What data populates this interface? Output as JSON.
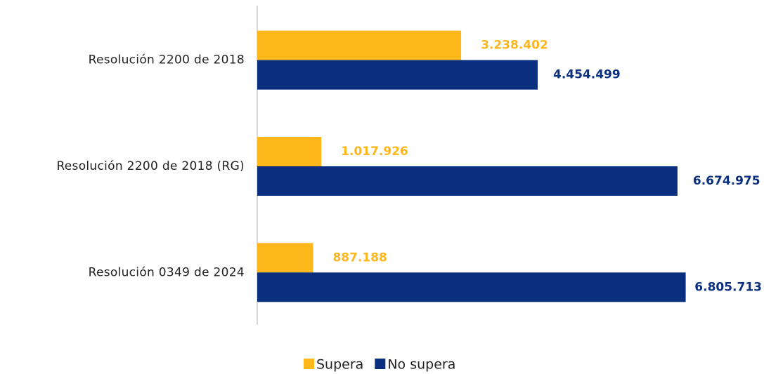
{
  "chart_data": {
    "type": "hbar",
    "categories": [
      "Resolución 2200 de 2018",
      "Resolución 2200 de 2018 (RG)",
      "Resolución 0349 de 2024"
    ],
    "series": [
      {
        "name": "Supera",
        "color": "#fdb71a",
        "values": [
          3238402,
          1017926,
          887188
        ],
        "value_labels": [
          "3.238.402",
          "1.017.926",
          "887.188"
        ]
      },
      {
        "name": "No supera",
        "color": "#0a2f7f",
        "values": [
          4454499,
          6674975,
          6805713
        ],
        "value_labels": [
          "4.454.499",
          "6.674.975",
          "6.805.713"
        ]
      }
    ],
    "xlim": [
      0,
      7000000
    ]
  }
}
